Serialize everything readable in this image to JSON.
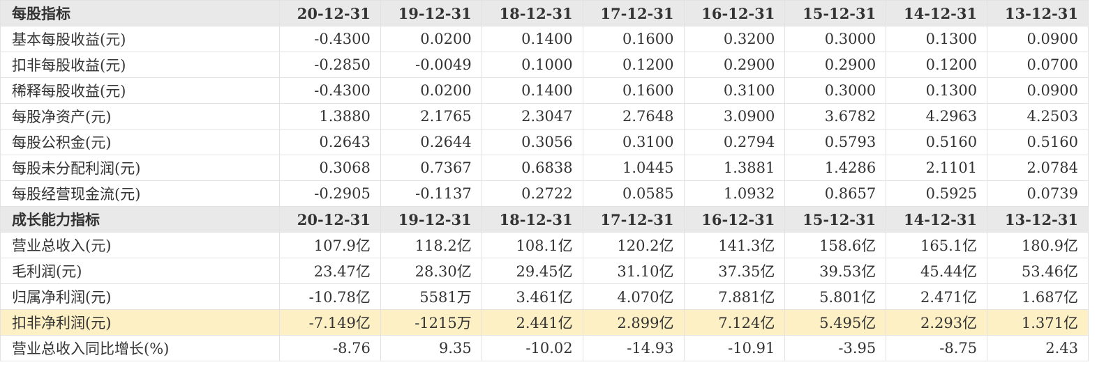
{
  "sections": [
    {
      "header": [
        "每股指标",
        "20-12-31",
        "19-12-31",
        "18-12-31",
        "17-12-31",
        "16-12-31",
        "15-12-31",
        "14-12-31",
        "13-12-31"
      ],
      "rows": [
        [
          "基本每股收益(元)",
          "-0.4300",
          "0.0200",
          "0.1400",
          "0.1600",
          "0.3200",
          "0.3000",
          "0.1300",
          "0.0900"
        ],
        [
          "扣非每股收益(元)",
          "-0.2850",
          "-0.0049",
          "0.1000",
          "0.1200",
          "0.2900",
          "0.2900",
          "0.1200",
          "0.0700"
        ],
        [
          "稀释每股收益(元)",
          "-0.4300",
          "0.0200",
          "0.1400",
          "0.1600",
          "0.3100",
          "0.3000",
          "0.1300",
          "0.0900"
        ],
        [
          "每股净资产(元)",
          "1.3880",
          "2.1765",
          "2.3047",
          "2.7648",
          "3.0900",
          "3.6782",
          "4.2963",
          "4.2503"
        ],
        [
          "每股公积金(元)",
          "0.2643",
          "0.2644",
          "0.3056",
          "0.3100",
          "0.2794",
          "0.5793",
          "0.5160",
          "0.5160"
        ],
        [
          "每股未分配利润(元)",
          "0.3068",
          "0.7367",
          "0.6838",
          "1.0445",
          "1.3881",
          "1.4286",
          "2.1101",
          "2.0784"
        ],
        [
          "每股经营现金流(元)",
          "-0.2905",
          "-0.1137",
          "0.2722",
          "0.0585",
          "1.0932",
          "0.8657",
          "0.5925",
          "0.0739"
        ]
      ]
    },
    {
      "header": [
        "成长能力指标",
        "20-12-31",
        "19-12-31",
        "18-12-31",
        "17-12-31",
        "16-12-31",
        "15-12-31",
        "14-12-31",
        "13-12-31"
      ],
      "rows": [
        [
          "营业总收入(元)",
          "107.9亿",
          "118.2亿",
          "108.1亿",
          "120.2亿",
          "141.3亿",
          "158.6亿",
          "165.1亿",
          "180.9亿"
        ],
        [
          "毛利润(元)",
          "23.47亿",
          "28.30亿",
          "29.45亿",
          "31.10亿",
          "37.35亿",
          "39.53亿",
          "45.44亿",
          "53.46亿"
        ],
        [
          "归属净利润(元)",
          "-10.78亿",
          "5581万",
          "3.461亿",
          "4.070亿",
          "7.881亿",
          "5.801亿",
          "2.471亿",
          "1.687亿"
        ],
        [
          "扣非净利润(元)",
          "-7.149亿",
          "-1215万",
          "2.441亿",
          "2.899亿",
          "7.124亿",
          "5.495亿",
          "2.293亿",
          "1.371亿"
        ],
        [
          "营业总收入同比增长(%)",
          "-8.76",
          "9.35",
          "-10.02",
          "-14.93",
          "-10.91",
          "-3.95",
          "-8.75",
          "2.43"
        ]
      ]
    }
  ]
}
